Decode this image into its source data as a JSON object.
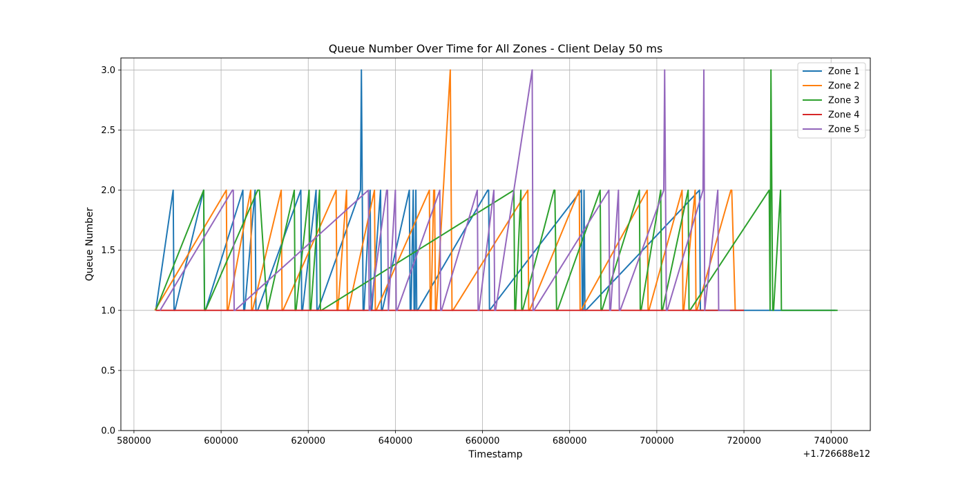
{
  "chart_data": {
    "type": "line",
    "title": "Queue Number Over Time for All Zones - Client Delay 50 ms",
    "xlabel": "Timestamp",
    "ylabel": "Queue Number",
    "x_offset_label": "+1.726688e12",
    "xlim": [
      577000,
      749000
    ],
    "ylim": [
      0,
      3.1
    ],
    "x_ticks": [
      580000,
      600000,
      620000,
      640000,
      660000,
      680000,
      700000,
      720000,
      740000
    ],
    "x_tick_labels": [
      "580000",
      "600000",
      "620000",
      "640000",
      "660000",
      "680000",
      "700000",
      "720000",
      "740000"
    ],
    "y_ticks": [
      0.0,
      0.5,
      1.0,
      1.5,
      2.0,
      2.5,
      3.0
    ],
    "y_tick_labels": [
      "0.0",
      "0.5",
      "1.0",
      "1.5",
      "2.0",
      "2.5",
      "3.0"
    ],
    "grid": true,
    "legend_position": "top-right",
    "series": [
      {
        "name": "Zone 1",
        "color": "#1f77b4",
        "x": [
          585000,
          589000,
          589200,
          589400,
          596000,
          596200,
          596400,
          605000,
          605200,
          605400,
          607800,
          608000,
          608200,
          608400,
          618300,
          618500,
          618700,
          621800,
          622000,
          622200,
          632000,
          632200,
          632400,
          632600,
          632800,
          634200,
          634400,
          634600,
          636600,
          636800,
          637000,
          643200,
          643400,
          643600,
          644100,
          644300,
          644500,
          644700,
          644900,
          645100,
          661200,
          661400,
          661600,
          682700,
          682900,
          683100,
          683300,
          683500,
          683700,
          709800,
          710000,
          710200,
          741000
        ],
        "y": [
          1,
          2,
          1,
          1,
          2,
          1,
          1,
          2,
          1,
          1,
          2,
          1,
          1,
          1,
          2,
          1,
          1,
          2,
          1,
          1,
          2,
          3,
          2,
          1,
          1,
          2,
          1,
          1,
          2,
          1,
          1,
          2,
          1,
          1,
          2,
          1,
          1,
          2,
          1,
          1,
          2,
          2,
          1,
          2,
          1,
          1,
          2,
          1,
          1,
          2,
          1,
          1,
          1
        ]
      },
      {
        "name": "Zone 2",
        "color": "#ff7f0e",
        "x": [
          584800,
          601200,
          601400,
          601600,
          606800,
          607000,
          607200,
          613800,
          614000,
          614200,
          626400,
          626600,
          626800,
          628800,
          629000,
          629200,
          635200,
          635400,
          635600,
          647800,
          648000,
          648200,
          648800,
          649000,
          649200,
          649400,
          652600,
          652800,
          653000,
          653200,
          670400,
          670600,
          670800,
          682200,
          682400,
          682600,
          697800,
          698000,
          698200,
          705800,
          706000,
          706200,
          708800,
          709000,
          709200,
          717000,
          717200,
          718000,
          718200
        ],
        "y": [
          1,
          2,
          1,
          1,
          2,
          1,
          1,
          2,
          1,
          1,
          2,
          1,
          1,
          2,
          1,
          1,
          2,
          1,
          1,
          2,
          1,
          1,
          2,
          2,
          1,
          1,
          3,
          2,
          1,
          1,
          2,
          1,
          1,
          2,
          1,
          1,
          2,
          1,
          1,
          2,
          1,
          1,
          2,
          1,
          1,
          2,
          2,
          1,
          1
        ]
      },
      {
        "name": "Zone 3",
        "color": "#2ca02c",
        "x": [
          585000,
          596000,
          596200,
          596400,
          608400,
          608600,
          608800,
          610600,
          616800,
          617000,
          617200,
          620200,
          620400,
          620600,
          622600,
          622800,
          623000,
          667200,
          667400,
          667600,
          668800,
          669000,
          669200,
          676400,
          676600,
          677000,
          677200,
          687000,
          687200,
          687400,
          696000,
          696200,
          696400,
          700900,
          701100,
          701300,
          707200,
          707400,
          707600,
          725800,
          726000,
          726200,
          726400,
          726600,
          726800,
          728400,
          728600,
          741500
        ],
        "y": [
          1,
          2,
          1,
          1,
          2,
          2,
          2,
          1,
          2,
          1,
          1,
          2,
          1,
          1,
          2,
          1,
          1,
          2,
          1,
          1,
          2,
          1,
          1,
          2,
          2,
          1,
          1,
          2,
          1,
          1,
          2,
          1,
          1,
          2,
          1,
          1,
          2,
          1,
          1,
          2,
          1,
          3,
          2,
          1,
          1,
          2,
          1,
          1
        ]
      },
      {
        "name": "Zone 4",
        "color": "#d62728",
        "x": [
          585000,
          720000
        ],
        "y": [
          1,
          1
        ]
      },
      {
        "name": "Zone 5",
        "color": "#9467bd",
        "x": [
          586000,
          602600,
          602800,
          603000,
          603200,
          633800,
          634000,
          634200,
          638000,
          638200,
          638400,
          640000,
          640200,
          640400,
          650200,
          650400,
          650600,
          658800,
          659000,
          659200,
          662600,
          662800,
          663000,
          671400,
          671600,
          671800,
          689000,
          689200,
          689400,
          691200,
          691400,
          691600,
          701600,
          701800,
          702000,
          702200,
          702400,
          710600,
          710800,
          711000,
          714000,
          714200,
          714400,
          716800
        ],
        "y": [
          1,
          2,
          2,
          1,
          1,
          2,
          1,
          1,
          2,
          2,
          1,
          2,
          1,
          1,
          2,
          1,
          1,
          2,
          1,
          1,
          2,
          1,
          1,
          3,
          1,
          1,
          2,
          1,
          1,
          2,
          1,
          1,
          2,
          3,
          2,
          1,
          1,
          2,
          3,
          1,
          2,
          1,
          1,
          1
        ]
      }
    ]
  }
}
